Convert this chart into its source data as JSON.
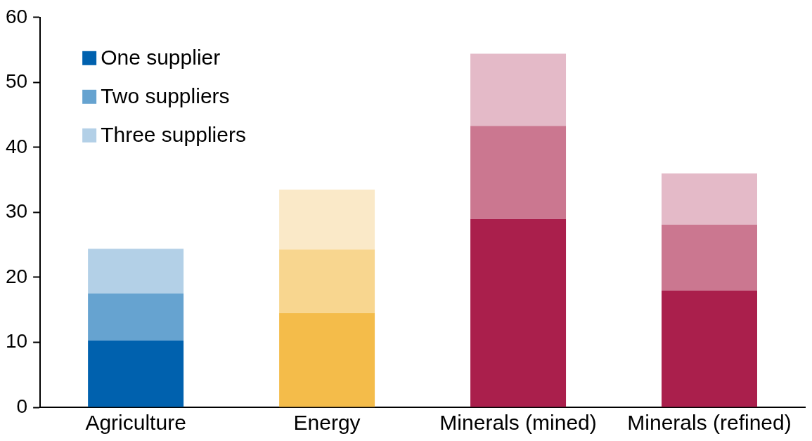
{
  "chart_data": {
    "type": "bar",
    "stacked": true,
    "categories": [
      "Agriculture",
      "Energy",
      "Minerals (mined)",
      "Minerals (refined)"
    ],
    "series": [
      {
        "name": "One supplier",
        "color": "#0061ae",
        "colors": [
          "#0061ae",
          "#f4bc4a",
          "#aa1f4c",
          "#aa1f4c"
        ],
        "values": [
          10.3,
          14.5,
          29,
          18
        ]
      },
      {
        "name": "Two suppliers",
        "color": "#66a3d0",
        "colors": [
          "#66a3d0",
          "#f8d68f",
          "#cb7790",
          "#cb7790"
        ],
        "values": [
          7.2,
          9.8,
          14.3,
          10.1
        ]
      },
      {
        "name": "Three suppliers",
        "color": "#b3d0e7",
        "colors": [
          "#b3d0e7",
          "#fae9c8",
          "#e4bac8",
          "#e4bac8"
        ],
        "values": [
          6.9,
          9.2,
          11.1,
          7.9
        ]
      }
    ],
    "ylim": [
      0,
      60
    ],
    "yticks": [
      0,
      10,
      20,
      30,
      40,
      50,
      60
    ],
    "grid": false,
    "legend": "top left"
  }
}
